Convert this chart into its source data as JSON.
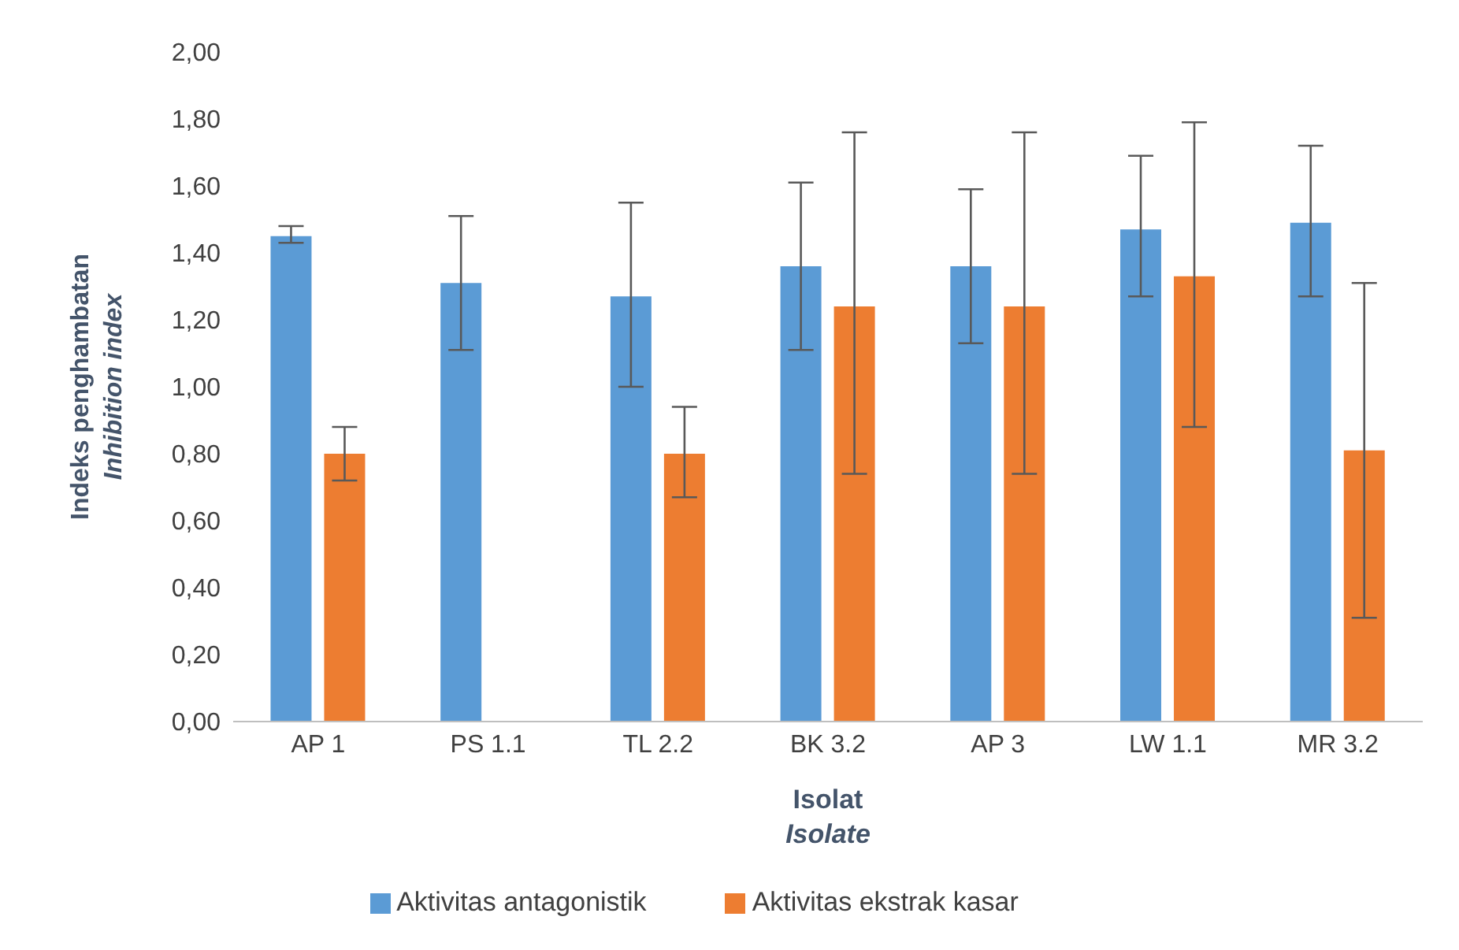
{
  "chart_data": {
    "type": "bar",
    "xlabel": "Isolat\nIsolate",
    "ylabel": "Indeks penghambatan\nInhibition index",
    "categories": [
      "AP 1",
      "PS 1.1",
      "TL 2.2",
      "BK 3.2",
      "AP 3",
      "LW 1.1",
      "MR 3.2"
    ],
    "series": [
      {
        "name": "Aktivitas antagonistik",
        "color": "#5b9bd5",
        "values": [
          1.45,
          1.31,
          1.27,
          1.36,
          1.36,
          1.47,
          1.49
        ],
        "errors": [
          [
            1.43,
            1.48
          ],
          [
            1.11,
            1.51
          ],
          [
            1.0,
            1.55
          ],
          [
            1.11,
            1.61
          ],
          [
            1.13,
            1.59
          ],
          [
            1.27,
            1.69
          ],
          [
            1.27,
            1.72
          ]
        ]
      },
      {
        "name": "Aktivitas ekstrak kasar",
        "color": "#ed7d31",
        "values": [
          0.8,
          null,
          0.8,
          1.24,
          1.24,
          1.33,
          0.81
        ],
        "errors": [
          [
            0.72,
            0.88
          ],
          null,
          [
            0.67,
            0.94
          ],
          [
            0.74,
            1.76
          ],
          [
            0.74,
            1.76
          ],
          [
            0.88,
            1.79
          ],
          [
            0.31,
            1.31
          ]
        ]
      }
    ],
    "ylim": [
      0,
      2
    ],
    "yticks": [
      {
        "value": 0,
        "label": "0,00"
      },
      {
        "value": 0.2,
        "label": "0,20"
      },
      {
        "value": 0.4,
        "label": "0,40"
      },
      {
        "value": 0.6,
        "label": "0,60"
      },
      {
        "value": 0.8,
        "label": "0,80"
      },
      {
        "value": 1,
        "label": "1,00"
      },
      {
        "value": 1.2,
        "label": "1,20"
      },
      {
        "value": 1.4,
        "label": "1,40"
      },
      {
        "value": 1.6,
        "label": "1,60"
      },
      {
        "value": 1.8,
        "label": "1,80"
      },
      {
        "value": 2,
        "label": "2,00"
      }
    ],
    "grid": false,
    "legend": "bottom"
  }
}
